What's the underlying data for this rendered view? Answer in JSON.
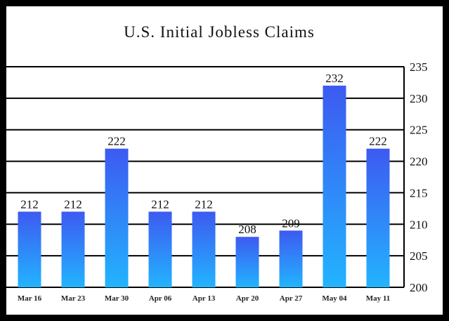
{
  "chart_data": {
    "type": "bar",
    "title": "U.S. Initial Jobless Claims",
    "categories": [
      "Mar 16",
      "Mar 23",
      "Mar 30",
      "Apr 06",
      "Apr 13",
      "Apr 20",
      "Apr 27",
      "May 04",
      "May 11"
    ],
    "values": [
      212,
      212,
      222,
      212,
      212,
      208,
      209,
      232,
      222
    ],
    "data_labels": [
      "212",
      "212",
      "222",
      "212",
      "212",
      "208",
      "209",
      "232",
      "222"
    ],
    "ylim": [
      200,
      235
    ],
    "yticks": [
      200,
      205,
      210,
      215,
      220,
      225,
      230,
      235
    ],
    "y_axis_side": "right",
    "grid": true,
    "colors": {
      "bar_top": "#3d5af1",
      "bar_bottom": "#22b4ff",
      "frame": "#000000",
      "background": "#ffffff"
    }
  }
}
